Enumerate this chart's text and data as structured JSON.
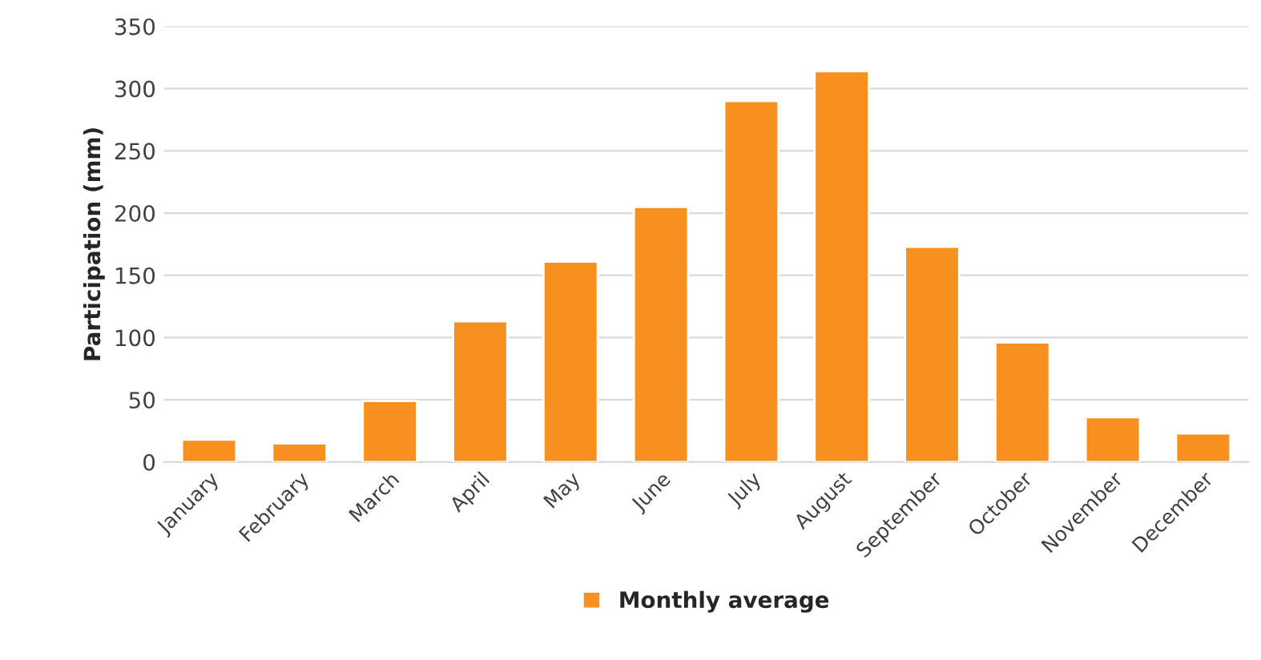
{
  "chart_data": {
    "type": "bar",
    "ylabel": "Participation (mm)",
    "categories": [
      "January",
      "February",
      "March",
      "April",
      "May",
      "June",
      "July",
      "August",
      "September",
      "October",
      "November",
      "December"
    ],
    "series": [
      {
        "name": "Monthly average",
        "color": "#f7901e",
        "values": [
          18,
          15,
          49,
          113,
          161,
          205,
          290,
          314,
          173,
          96,
          36,
          23
        ]
      }
    ],
    "ylim": [
      0,
      350
    ],
    "yticks": [
      0,
      50,
      100,
      150,
      200,
      250,
      300,
      350
    ],
    "grid": "y",
    "legend": "bottom"
  }
}
